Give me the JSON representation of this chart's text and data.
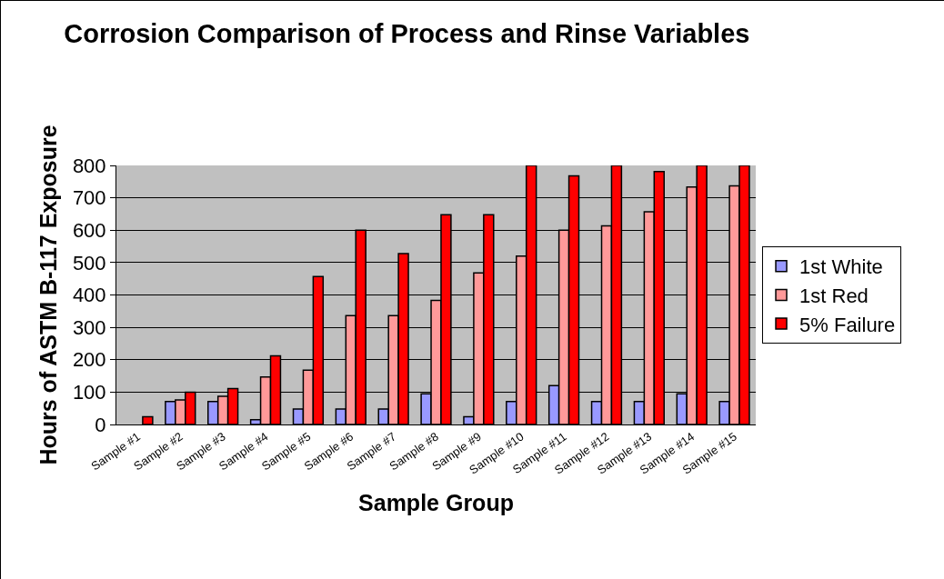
{
  "chart_data": {
    "type": "bar",
    "title": "Corrosion Comparison of Process and Rinse Variables",
    "xlabel": "Sample Group",
    "ylabel": "Hours of ASTM B-117 Exposure",
    "categories": [
      "Sample #1",
      "Sample #2",
      "Sample #3",
      "Sample #4",
      "Sample #5",
      "Sample #6",
      "Sample #7",
      "Sample #8",
      "Sample #9",
      "Sample #10",
      "Sample #11",
      "Sample #12",
      "Sample #13",
      "Sample #14",
      "Sample #15"
    ],
    "series": [
      {
        "name": "1st White",
        "color": "#9999ff",
        "values": [
          null,
          71,
          71,
          15,
          48,
          48,
          48,
          95,
          24,
          71,
          120,
          71,
          71,
          95,
          71
        ]
      },
      {
        "name": "1st Red",
        "color": "#ff9999",
        "values": [
          null,
          76,
          87,
          147,
          168,
          336,
          336,
          383,
          468,
          520,
          600,
          613,
          657,
          733,
          737
        ]
      },
      {
        "name": "5% Failure",
        "color": "#ff0000",
        "values": [
          24,
          100,
          111,
          212,
          457,
          600,
          528,
          648,
          648,
          800,
          768,
          800,
          781,
          800,
          800
        ]
      }
    ],
    "ylim": [
      0,
      800
    ],
    "yticks": [
      0,
      100,
      200,
      300,
      400,
      500,
      600,
      700,
      800
    ],
    "grid": "y",
    "legend": "right"
  }
}
